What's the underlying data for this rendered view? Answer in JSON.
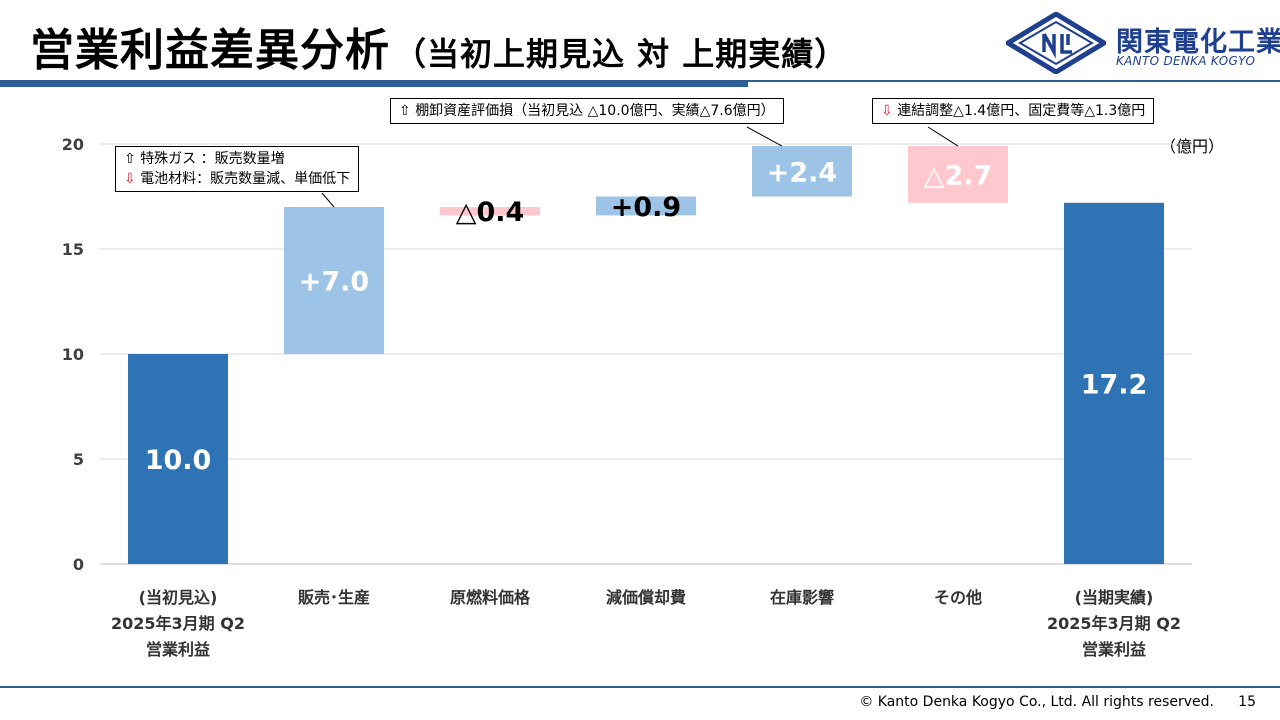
{
  "header": {
    "title": "営業利益差異分析",
    "subtitle": "（当初上期見込 対 上期実績）"
  },
  "logo": {
    "icon": "kanto-denka-logo-icon",
    "name_jp": "関東電化工業",
    "name_en": "KANTO DENKA KOGYO",
    "color": "#1f3f8f"
  },
  "chart_data": {
    "type": "bar",
    "subtype": "waterfall",
    "unit": "（億円）",
    "ylim": [
      0,
      20
    ],
    "yticks": [
      "0",
      "5",
      "10",
      "15",
      "20"
    ],
    "grid": true,
    "categories": [
      [
        "(当初見込)",
        "2025年3月期 Q2",
        "営業利益"
      ],
      [
        "販売･生産"
      ],
      [
        "原燃料価格"
      ],
      [
        "減価償却費"
      ],
      [
        "在庫影響"
      ],
      [
        "その他"
      ],
      [
        "(当期実績)",
        "2025年3月期 Q2",
        "営業利益"
      ]
    ],
    "bars": [
      {
        "kind": "total",
        "start": 0,
        "end": 10.0,
        "label": "10.0"
      },
      {
        "kind": "increase",
        "start": 10.0,
        "end": 17.0,
        "label": "+7.0"
      },
      {
        "kind": "decrease",
        "start": 16.6,
        "end": 17.0,
        "label": "△0.4"
      },
      {
        "kind": "increase",
        "start": 16.6,
        "end": 17.5,
        "label": "+0.9"
      },
      {
        "kind": "increase",
        "start": 17.5,
        "end": 19.9,
        "label": "+2.4"
      },
      {
        "kind": "decrease",
        "start": 17.2,
        "end": 19.9,
        "label": "△2.7"
      },
      {
        "kind": "total",
        "start": 0,
        "end": 17.2,
        "label": "17.2"
      }
    ],
    "colors": {
      "total": "#2e74b5",
      "increase": "#9dc3e6",
      "decrease": "#ffc7ce",
      "down_arrow": "#e0202a"
    }
  },
  "callouts": {
    "sales": {
      "line1_arrow": "⇧",
      "line1_text": "特殊ガス ：販売数量増",
      "line2_arrow": "⇩",
      "line2_text": "電池材料：販売数量減、単価低下"
    },
    "inventory": {
      "arrow": "⇧",
      "text": "棚卸資産評価損（当初見込 △10.0億円、実績△7.6億円）"
    },
    "other": {
      "arrow": "⇩",
      "text": "連結調整△1.4億円、固定費等△1.3億円"
    }
  },
  "footer": {
    "copyright": "© Kanto Denka Kogyo Co., Ltd. All rights reserved.",
    "page": "15"
  }
}
